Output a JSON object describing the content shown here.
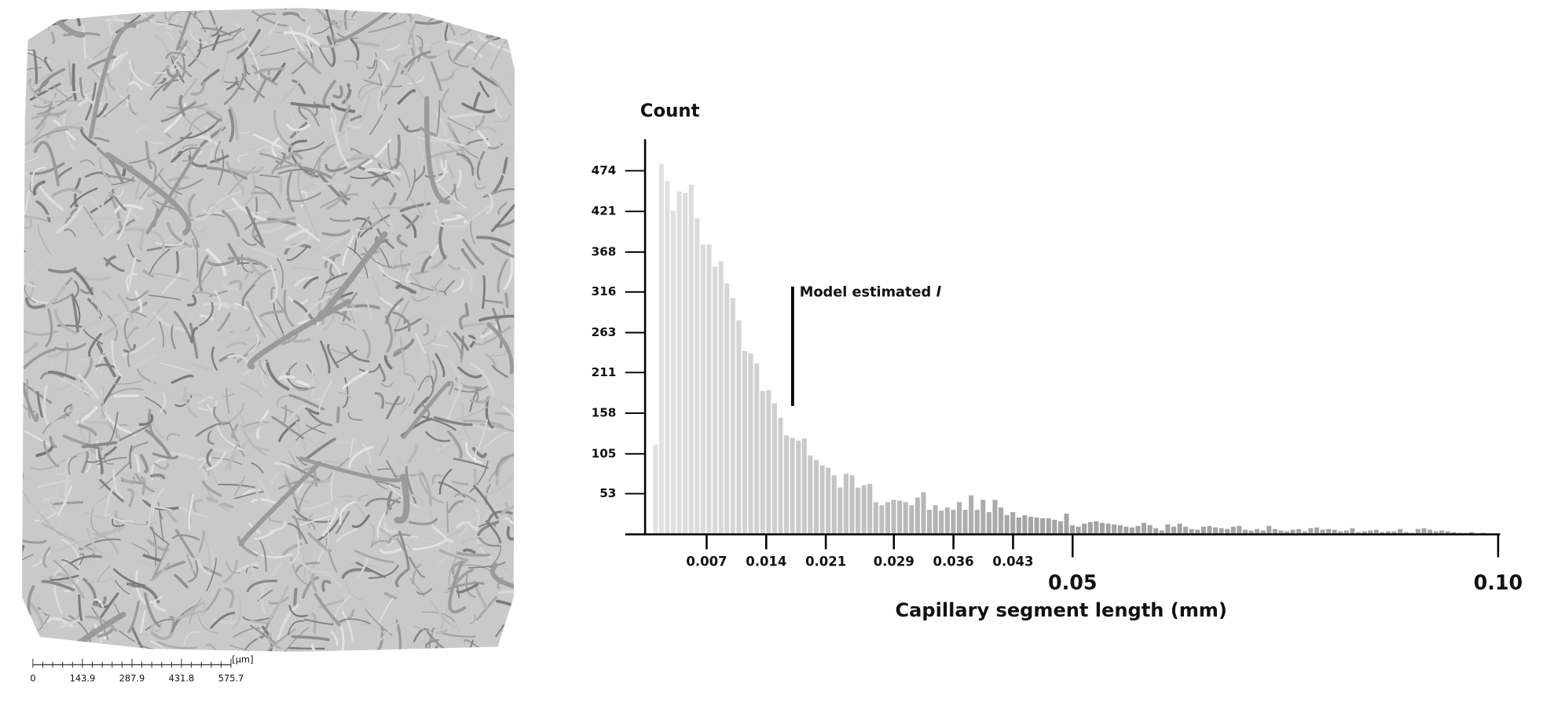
{
  "image_panel": {
    "scale_bar": {
      "labels": [
        "0",
        "143.9",
        "287.9",
        "431.8",
        "575.7"
      ],
      "unit": "[µm]"
    }
  },
  "chart_data": {
    "type": "histogram",
    "y_title": "Count",
    "x_title": "Capillary segment length (mm)",
    "annotation": {
      "text": "Model estimated",
      "symbol": "l",
      "x": 0.0171
    },
    "bins": [
      0.0007,
      0.0014,
      0.0021,
      0.0028,
      0.0035,
      0.0042,
      0.0049,
      0.0056,
      0.0063,
      0.007,
      0.0077,
      0.0084,
      0.0091,
      0.0098,
      0.0105,
      0.0112,
      0.0119,
      0.0126,
      0.0133,
      0.014,
      0.0147,
      0.0154,
      0.0161,
      0.0168,
      0.0175,
      0.0182,
      0.0189,
      0.0196,
      0.0203,
      0.021,
      0.0217,
      0.0224,
      0.0231,
      0.0238,
      0.0245,
      0.0252,
      0.0259,
      0.0266,
      0.0273,
      0.028,
      0.0287,
      0.0294,
      0.0301,
      0.0308,
      0.0315,
      0.0322,
      0.0329,
      0.0336,
      0.0343,
      0.035,
      0.0357,
      0.0364,
      0.0371,
      0.0378,
      0.0385,
      0.0392,
      0.0399,
      0.0406,
      0.0413,
      0.042,
      0.0427,
      0.0434,
      0.0441,
      0.0448,
      0.0455,
      0.0462,
      0.0469,
      0.0476,
      0.0483,
      0.049,
      0.0497,
      0.0504,
      0.0511,
      0.0518,
      0.0525,
      0.0532,
      0.0539,
      0.0546,
      0.0553,
      0.056,
      0.0567,
      0.0574,
      0.0581,
      0.0588,
      0.0595,
      0.0602,
      0.0609,
      0.0616,
      0.0623,
      0.063,
      0.0637,
      0.0644,
      0.0651,
      0.0658,
      0.0665,
      0.0672,
      0.0679,
      0.0686,
      0.0693,
      0.07,
      0.0707,
      0.0714,
      0.0721,
      0.0728,
      0.0735,
      0.0742,
      0.0749,
      0.0756,
      0.0763,
      0.077,
      0.0777,
      0.0784,
      0.0791,
      0.0798,
      0.0805,
      0.0812,
      0.0819,
      0.0826,
      0.0833,
      0.084,
      0.0847,
      0.0854,
      0.0861,
      0.0868,
      0.0875,
      0.0882,
      0.0889,
      0.0896,
      0.0903,
      0.091,
      0.0917,
      0.0924,
      0.0931,
      0.0938,
      0.0945,
      0.0952,
      0.0959,
      0.0966,
      0.0973,
      0.098,
      0.0987
    ],
    "counts": [
      117,
      483,
      461,
      422,
      447,
      445,
      456,
      412,
      378,
      378,
      349,
      356,
      327,
      308,
      279,
      239,
      236,
      223,
      187,
      188,
      171,
      152,
      129,
      126,
      122,
      125,
      103,
      97,
      90,
      87,
      77,
      61,
      79,
      77,
      61,
      64,
      66,
      42,
      38,
      42,
      45,
      44,
      42,
      38,
      48,
      55,
      32,
      38,
      31,
      35,
      32,
      42,
      32,
      51,
      32,
      45,
      29,
      45,
      35,
      25,
      29,
      22,
      25,
      23,
      22,
      21,
      21,
      19,
      17,
      27,
      12,
      10,
      14,
      16,
      17,
      15,
      14,
      13,
      12,
      10,
      9,
      11,
      15,
      12,
      8,
      5,
      13,
      10,
      14,
      10,
      7,
      6,
      10,
      11,
      9,
      8,
      7,
      10,
      11,
      6,
      5,
      7,
      5,
      11,
      7,
      5,
      4,
      6,
      7,
      4,
      8,
      9,
      6,
      7,
      6,
      4,
      5,
      8,
      3,
      4,
      5,
      6,
      3,
      4,
      4,
      7,
      3,
      2,
      7,
      8,
      6,
      4,
      5,
      4,
      3,
      2,
      2,
      3,
      1,
      2
    ],
    "color_gradient": [
      "#e2e2e2",
      "#a4a4a4"
    ],
    "xlim": [
      0,
      0.1
    ],
    "xticks": [
      0.007,
      0.014,
      0.021,
      0.029,
      0.036,
      0.043,
      0.05,
      {
        "value": 0.1,
        "label": "0.10"
      }
    ],
    "ylim": [
      0,
      515
    ],
    "yticks": [
      53,
      105,
      158,
      211,
      263,
      316,
      368,
      421,
      474
    ]
  }
}
